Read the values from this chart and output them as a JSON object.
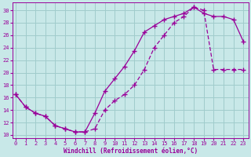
{
  "xlabel": "Windchill (Refroidissement éolien,°C)",
  "bg_color": "#c8e8e8",
  "grid_color": "#a0cccc",
  "line_color": "#990099",
  "xlim": [
    -0.3,
    23.5
  ],
  "ylim": [
    9.5,
    31.2
  ],
  "xticks": [
    0,
    1,
    2,
    3,
    4,
    5,
    6,
    7,
    8,
    9,
    10,
    11,
    12,
    13,
    14,
    15,
    16,
    17,
    18,
    19,
    20,
    21,
    22,
    23
  ],
  "yticks": [
    10,
    12,
    14,
    16,
    18,
    20,
    22,
    24,
    26,
    28,
    30
  ],
  "curve1_x": [
    0,
    1,
    2,
    3,
    4,
    5,
    6,
    7,
    8,
    9,
    10,
    11,
    12,
    13,
    14,
    15,
    16,
    17,
    18,
    19,
    20,
    21,
    22,
    23
  ],
  "curve1_y": [
    16.5,
    14.5,
    13.5,
    13.0,
    11.5,
    11.0,
    10.5,
    10.5,
    13.5,
    17.0,
    19.0,
    21.0,
    23.5,
    26.5,
    27.5,
    28.5,
    29.0,
    29.5,
    30.5,
    29.5,
    29.0,
    29.0,
    28.5,
    25.0
  ],
  "curve2_x": [
    0,
    1,
    2,
    3,
    4,
    5,
    6,
    7,
    8,
    9,
    10,
    11,
    12,
    13,
    14,
    15,
    16,
    17,
    18,
    19,
    20,
    21,
    22,
    23
  ],
  "curve2_y": [
    16.5,
    14.5,
    13.5,
    13.0,
    11.5,
    11.0,
    10.5,
    10.5,
    11.0,
    14.0,
    15.5,
    16.5,
    18.0,
    20.5,
    24.0,
    26.0,
    28.0,
    29.0,
    30.5,
    30.0,
    20.5,
    20.5,
    20.5,
    20.5
  ],
  "curve1_solid": true,
  "curve2_dashed": true
}
